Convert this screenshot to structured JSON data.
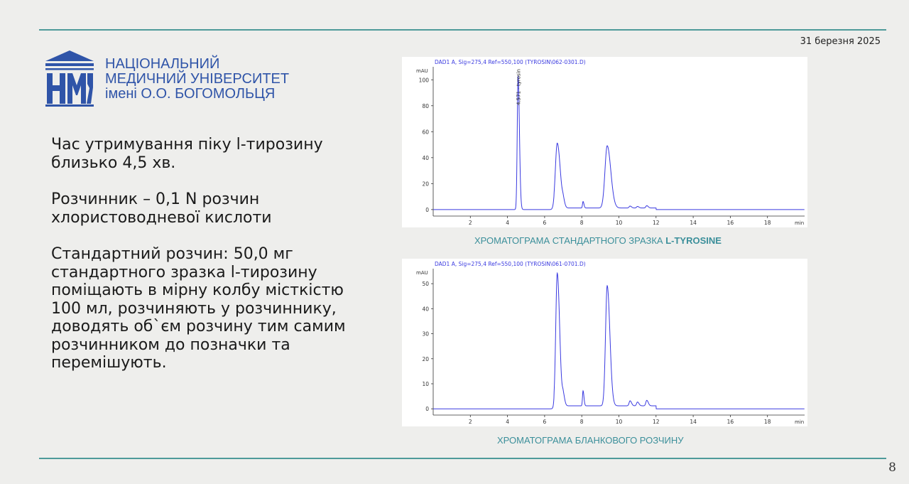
{
  "header": {
    "date": "31 березня 2025"
  },
  "university": {
    "logo_letters": "НМУ",
    "line1": "НАЦІОНАЛЬНИЙ",
    "line2": "МЕДИЧНИЙ УНІВЕРСИТЕТ",
    "line3": "імені О.О. БОГОМОЛЬЦЯ"
  },
  "content": {
    "p1": "Час утримування піку l-тирозину близько 4,5 хв.",
    "p2": "Розчинник – 0,1 N розчин хлористоводневої кислоти",
    "p3": "Стандартний розчин: 50,0 мг стандартного зразка l-тирозину поміщають в мірну колбу місткістю 100 мл, розчиняють у розчиннику, доводять об`єм розчину тим самим розчинником до позначки та перемішують."
  },
  "captions": {
    "chart1_prefix": "ХРОМАТОГРАМА СТАНДАРТНОГО ЗРАЗКА ",
    "chart1_bold": "L-TYROSINE",
    "chart2": "ХРОМАТОГРАМА  БЛАНКОВОГО РОЗЧИНУ"
  },
  "footer": {
    "page_number": "8"
  },
  "colors": {
    "accent": "#4e9a9a",
    "brand_blue": "#2f54a8",
    "trace": "#3a3ae0"
  },
  "chart_data": [
    {
      "type": "line",
      "title": "DAD1 A, Sig=275,4 Ref=550,100 (TYROSIN\\062-0301.D)",
      "ylabel": "mAU",
      "xlabel": "min",
      "xlim": [
        0,
        20
      ],
      "ylim": [
        -5,
        110
      ],
      "xticks": [
        2,
        4,
        6,
        8,
        10,
        12,
        14,
        16,
        18
      ],
      "yticks": [
        0,
        20,
        40,
        60,
        80,
        100
      ],
      "annotation": {
        "text": "4.571 - tyrosin",
        "x": 4.571
      },
      "peaks": [
        {
          "rt": 4.571,
          "height": 103,
          "width": 0.045
        },
        {
          "rt": 6.68,
          "height": 50,
          "width": 0.1
        },
        {
          "rt": 7.0,
          "height": 4,
          "width": 0.05
        },
        {
          "rt": 8.07,
          "height": 5,
          "width": 0.03
        },
        {
          "rt": 9.37,
          "height": 48,
          "width": 0.12
        },
        {
          "rt": 10.6,
          "height": 1.5,
          "width": 0.05
        },
        {
          "rt": 11.0,
          "height": 1.2,
          "width": 0.05
        },
        {
          "rt": 11.5,
          "height": 1.8,
          "width": 0.05
        }
      ]
    },
    {
      "type": "line",
      "title": "DAD1 A, Sig=275,4 Ref=550,100 (TYROSIN\\061-0701.D)",
      "ylabel": "mAU",
      "xlabel": "min",
      "xlim": [
        0,
        20
      ],
      "ylim": [
        -2.5,
        56
      ],
      "xticks": [
        2,
        4,
        6,
        8,
        10,
        12,
        14,
        16,
        18
      ],
      "yticks": [
        0,
        10,
        20,
        30,
        40,
        50
      ],
      "peaks": [
        {
          "rt": 6.68,
          "height": 53,
          "width": 0.08
        },
        {
          "rt": 7.0,
          "height": 4,
          "width": 0.05
        },
        {
          "rt": 8.07,
          "height": 6,
          "width": 0.03
        },
        {
          "rt": 9.37,
          "height": 48,
          "width": 0.09
        },
        {
          "rt": 10.6,
          "height": 2,
          "width": 0.05
        },
        {
          "rt": 11.0,
          "height": 1.5,
          "width": 0.05
        },
        {
          "rt": 11.5,
          "height": 2.2,
          "width": 0.05
        }
      ]
    }
  ]
}
